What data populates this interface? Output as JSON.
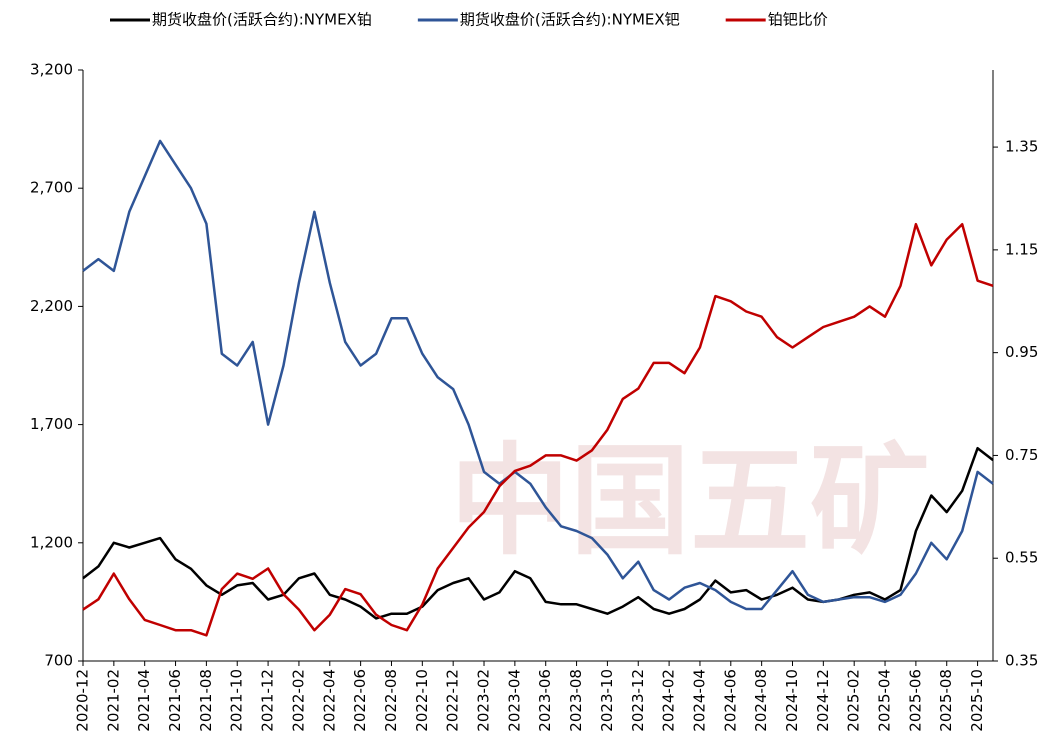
{
  "chart_data": {
    "type": "line",
    "watermark": "中国五矿",
    "categories": [
      "2020-12",
      null,
      "2021-02",
      null,
      "2021-04",
      null,
      "2021-06",
      null,
      "2021-08",
      null,
      "2021-10",
      null,
      "2021-12",
      null,
      "2022-02",
      null,
      "2022-04",
      null,
      "2022-06",
      null,
      "2022-08",
      null,
      "2022-10",
      null,
      "2022-12",
      null,
      "2023-02",
      null,
      "2023-04",
      null,
      "2023-06",
      null,
      "2023-08",
      null,
      "2023-10",
      null,
      "2023-12",
      null,
      "2024-02",
      null,
      "2024-04",
      null,
      "2024-06",
      null,
      "2024-08",
      null,
      "2024-10",
      null,
      "2024-12",
      null,
      "2025-02",
      null,
      "2025-04",
      null,
      "2025-06",
      null,
      "2025-08",
      null,
      "2025-10",
      null
    ],
    "series": [
      {
        "name": "期货收盘价(活跃合约):NYMEX铂",
        "color": "#000000",
        "values": [
          1050,
          1100,
          1200,
          1180,
          1200,
          1220,
          1130,
          1090,
          1020,
          980,
          1020,
          1030,
          960,
          980,
          1050,
          1070,
          980,
          960,
          930,
          880,
          900,
          900,
          930,
          1000,
          1030,
          1050,
          960,
          990,
          1080,
          1050,
          950,
          940,
          940,
          920,
          900,
          930,
          970,
          920,
          900,
          920,
          960,
          1040,
          990,
          1000,
          960,
          980,
          1010,
          960,
          950,
          960,
          980,
          990,
          960,
          1000,
          1250,
          1400,
          1330,
          1420,
          1600,
          1550
        ]
      },
      {
        "name": "期货收盘价(活跃合约):NYMEX钯",
        "color": "#2f5597",
        "values": [
          2350,
          2400,
          2350,
          2600,
          2750,
          2900,
          2800,
          2700,
          2550,
          2000,
          1950,
          2050,
          1700,
          1950,
          2300,
          2600,
          2300,
          2050,
          1950,
          2000,
          2150,
          2150,
          2000,
          1900,
          1850,
          1700,
          1500,
          1450,
          1500,
          1450,
          1350,
          1270,
          1250,
          1220,
          1150,
          1050,
          1120,
          1000,
          960,
          1010,
          1030,
          1000,
          950,
          920,
          920,
          1000,
          1080,
          980,
          950,
          960,
          970,
          970,
          950,
          980,
          1070,
          1200,
          1130,
          1250,
          1500,
          1450
        ]
      },
      {
        "name": "铂钯比价",
        "color": "#c00000",
        "axis": "y2",
        "values": [
          0.45,
          0.47,
          0.52,
          0.47,
          0.43,
          0.42,
          0.41,
          0.41,
          0.4,
          0.49,
          0.52,
          0.51,
          0.53,
          0.48,
          0.45,
          0.41,
          0.44,
          0.49,
          0.48,
          0.44,
          0.42,
          0.41,
          0.46,
          0.53,
          0.57,
          0.61,
          0.64,
          0.69,
          0.72,
          0.73,
          0.75,
          0.75,
          0.74,
          0.76,
          0.8,
          0.86,
          0.88,
          0.93,
          0.93,
          0.91,
          0.96,
          1.06,
          1.05,
          1.03,
          1.02,
          0.98,
          0.96,
          0.98,
          1.0,
          1.01,
          1.02,
          1.04,
          1.02,
          1.08,
          1.2,
          1.12,
          1.17,
          1.2,
          1.09,
          1.08
        ]
      }
    ],
    "ylim": [
      700,
      3200
    ],
    "yticks": [
      700,
      {
        "value": 1200,
        "label": "1,200"
      },
      {
        "value": 1700,
        "label": "1,700"
      },
      {
        "value": 2200,
        "label": "2,200"
      },
      {
        "value": 2700,
        "label": "2,700"
      },
      {
        "value": 3200,
        "label": "3,200"
      }
    ],
    "y2lim": [
      0.35,
      1.5
    ],
    "y2ticks": [
      0.35,
      0.55,
      0.75,
      0.95,
      1.15,
      1.35
    ],
    "legend": "top"
  }
}
